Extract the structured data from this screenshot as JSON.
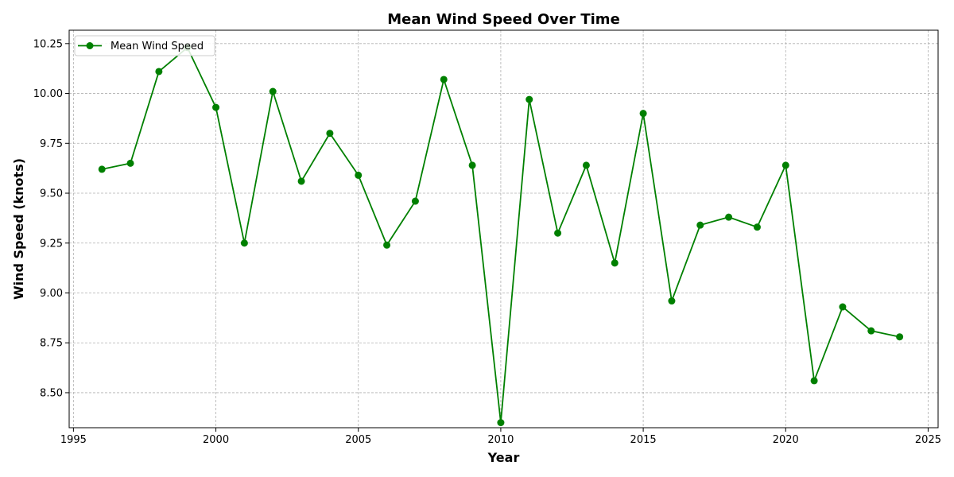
{
  "chart_data": {
    "type": "line",
    "title": "Mean Wind Speed Over Time",
    "xlabel": "Year",
    "ylabel": "Wind Speed (knots)",
    "xlim": [
      1994.85,
      2025.35
    ],
    "ylim": [
      8.3245,
      10.317
    ],
    "xticks": [
      1995,
      2000,
      2005,
      2010,
      2015,
      2020,
      2025
    ],
    "yticks": [
      8.5,
      8.75,
      9.0,
      9.25,
      9.5,
      9.75,
      10.0,
      10.25
    ],
    "grid": true,
    "legend_position": "top-left",
    "series": [
      {
        "name": "Mean Wind Speed",
        "color": "#008000",
        "marker": "circle",
        "x": [
          1996,
          1997,
          1998,
          1999,
          2000,
          2001,
          2002,
          2003,
          2004,
          2005,
          2006,
          2007,
          2008,
          2009,
          2010,
          2011,
          2012,
          2013,
          2014,
          2015,
          2016,
          2017,
          2018,
          2019,
          2020,
          2021,
          2022,
          2023,
          2024
        ],
        "y": [
          9.62,
          9.65,
          10.11,
          10.23,
          9.93,
          9.25,
          10.01,
          9.56,
          9.8,
          9.59,
          9.24,
          9.46,
          10.07,
          9.64,
          8.35,
          9.97,
          9.3,
          9.64,
          9.15,
          9.9,
          8.96,
          9.34,
          9.38,
          9.33,
          9.64,
          8.56,
          8.93,
          8.81,
          8.78
        ]
      }
    ]
  }
}
